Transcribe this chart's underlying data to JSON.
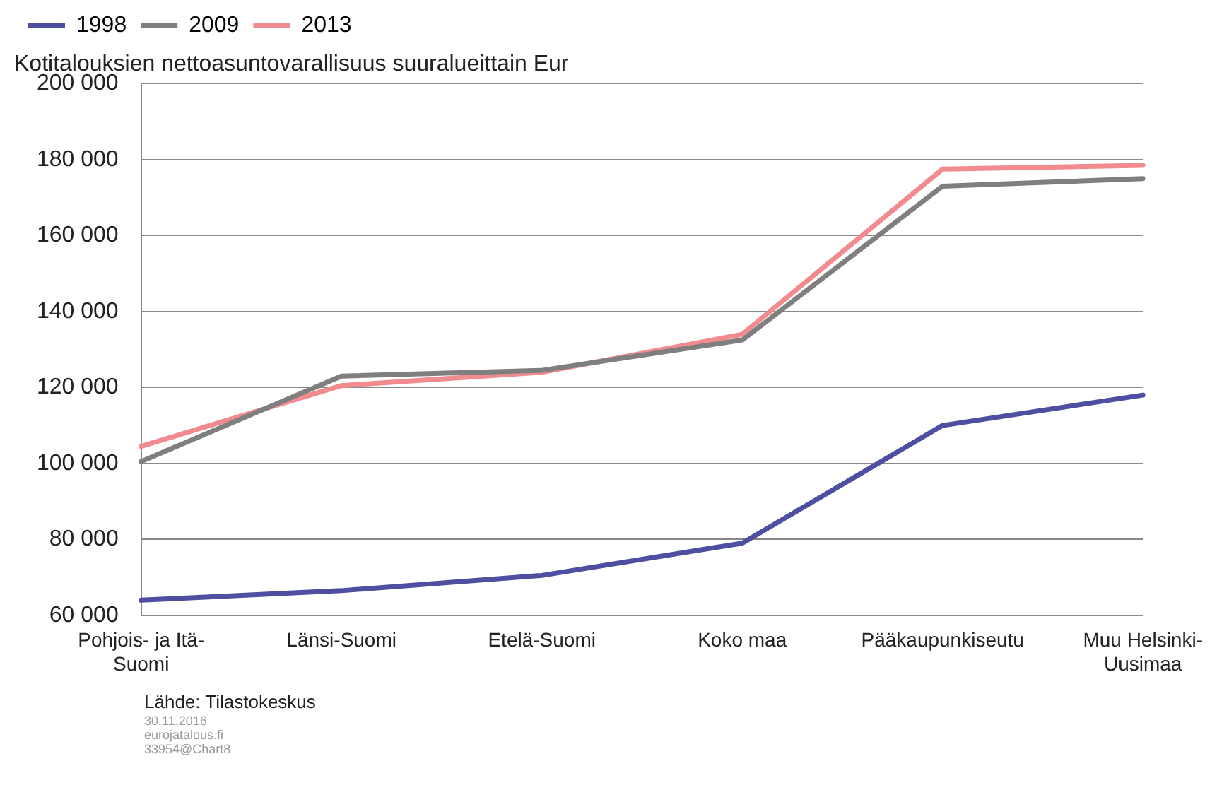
{
  "chart_data": {
    "type": "line",
    "title": "Kotitalouksien nettoasuntovarallisuus suuralueittain Eur",
    "categories": [
      "Pohjois- ja Itä-Suomi",
      "Länsi-Suomi",
      "Etelä-Suomi",
      "Koko maa",
      "Pääkaupunkiseutu",
      "Muu Helsinki-Uusimaa"
    ],
    "series": [
      {
        "name": "1998",
        "color": "#4e4fa0",
        "values": [
          64000,
          66500,
          70500,
          79000,
          110000,
          118000
        ]
      },
      {
        "name": "2009",
        "color": "#7f7f7f",
        "values": [
          100500,
          123000,
          124500,
          132500,
          173000,
          175000
        ]
      },
      {
        "name": "2013",
        "color": "#f28b90",
        "values": [
          104500,
          120500,
          124000,
          134000,
          177500,
          178500
        ]
      }
    ],
    "ylim": [
      60000,
      200000
    ],
    "yticks": [
      {
        "value": 60000,
        "label": "60 000"
      },
      {
        "value": 80000,
        "label": "80 000"
      },
      {
        "value": 100000,
        "label": "100 000"
      },
      {
        "value": 120000,
        "label": "120 000"
      },
      {
        "value": 140000,
        "label": "140 000"
      },
      {
        "value": 160000,
        "label": "160 000"
      },
      {
        "value": 180000,
        "label": "180 000"
      },
      {
        "value": 200000,
        "label": "200 000"
      }
    ],
    "grid": "y",
    "legend": "top left",
    "marker": "none",
    "line_style": "solid",
    "annotations": [
      "Lähde: Tilastokeskus",
      "30.11.2016",
      "eurojatalous.fi",
      "33954@Chart8"
    ]
  }
}
